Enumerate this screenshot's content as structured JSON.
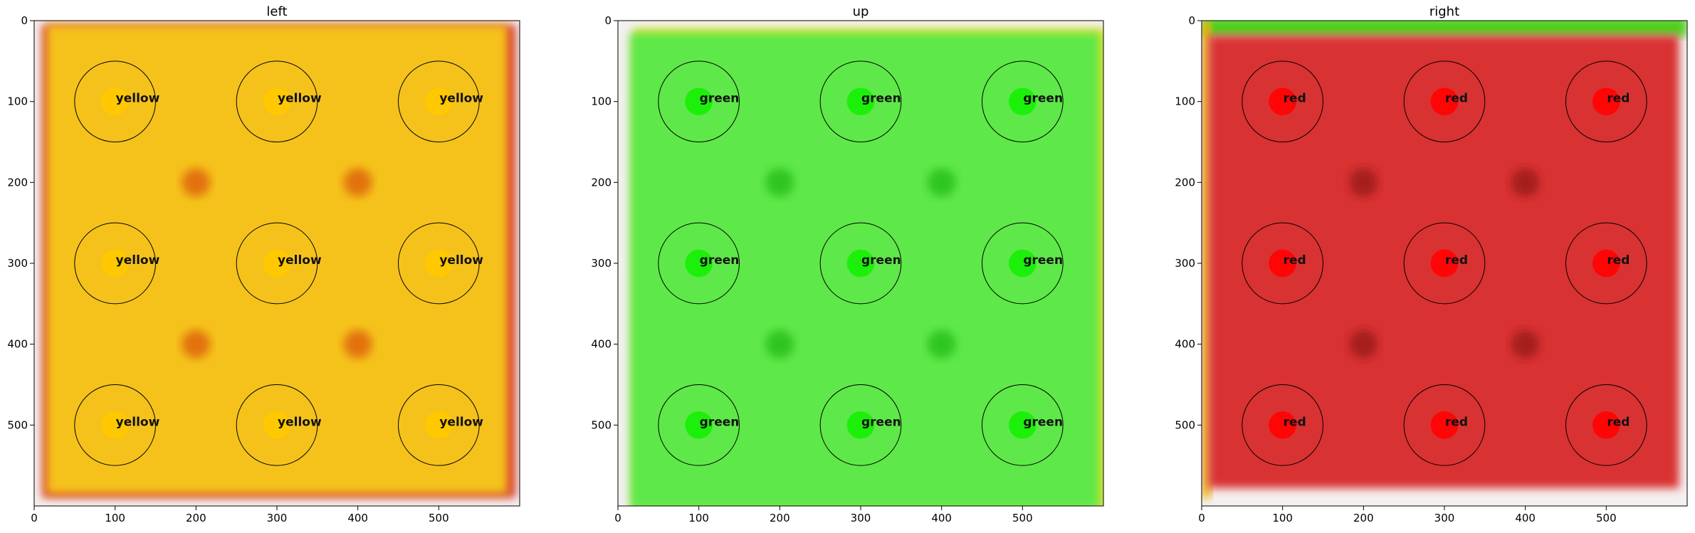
{
  "chart_data": [
    {
      "type": "heatmap",
      "title": "left",
      "xlim": [
        0,
        600
      ],
      "ylim": [
        600,
        0
      ],
      "x_ticks": [
        0,
        100,
        200,
        300,
        400,
        500
      ],
      "y_ticks": [
        0,
        100,
        200,
        300,
        400,
        500
      ],
      "fill_color": "#f5c21a",
      "dot_color": "#ffc800",
      "seam_color": "#e06a0e",
      "edge_color": "#d63a2a",
      "circle_centers": [
        [
          100,
          100
        ],
        [
          300,
          100
        ],
        [
          500,
          100
        ],
        [
          100,
          300
        ],
        [
          300,
          300
        ],
        [
          500,
          300
        ],
        [
          100,
          500
        ],
        [
          300,
          500
        ],
        [
          500,
          500
        ]
      ],
      "circle_radius": 50,
      "dot_radius": 17,
      "labels": [
        "yellow",
        "yellow",
        "yellow",
        "yellow",
        "yellow",
        "yellow",
        "yellow",
        "yellow",
        "yellow"
      ]
    },
    {
      "type": "heatmap",
      "title": "up",
      "xlim": [
        0,
        600
      ],
      "ylim": [
        600,
        0
      ],
      "x_ticks": [
        0,
        100,
        200,
        300,
        400,
        500
      ],
      "y_ticks": [
        0,
        100,
        200,
        300,
        400,
        500
      ],
      "fill_color": "#5fe84a",
      "dot_color": "#1cf00a",
      "seam_color": "#2cc21a",
      "edge_color": "#d8e02a",
      "circle_centers": [
        [
          100,
          100
        ],
        [
          300,
          100
        ],
        [
          500,
          100
        ],
        [
          100,
          300
        ],
        [
          300,
          300
        ],
        [
          500,
          300
        ],
        [
          100,
          500
        ],
        [
          300,
          500
        ],
        [
          500,
          500
        ]
      ],
      "circle_radius": 50,
      "dot_radius": 17,
      "labels": [
        "green",
        "green",
        "green",
        "green",
        "green",
        "green",
        "green",
        "green",
        "green"
      ]
    },
    {
      "type": "heatmap",
      "title": "right",
      "xlim": [
        0,
        600
      ],
      "ylim": [
        600,
        0
      ],
      "x_ticks": [
        0,
        100,
        200,
        300,
        400,
        500
      ],
      "y_ticks": [
        0,
        100,
        200,
        300,
        400,
        500
      ],
      "fill_color": "#d93232",
      "dot_color": "#ff0505",
      "seam_color": "#a01a1a",
      "edge_color": "#4fd21a",
      "circle_centers": [
        [
          100,
          100
        ],
        [
          300,
          100
        ],
        [
          500,
          100
        ],
        [
          100,
          300
        ],
        [
          300,
          300
        ],
        [
          500,
          300
        ],
        [
          100,
          500
        ],
        [
          300,
          500
        ],
        [
          500,
          500
        ]
      ],
      "circle_radius": 50,
      "dot_radius": 17,
      "labels": [
        "red",
        "red",
        "red",
        "red",
        "red",
        "red",
        "red",
        "red",
        "red"
      ]
    }
  ]
}
